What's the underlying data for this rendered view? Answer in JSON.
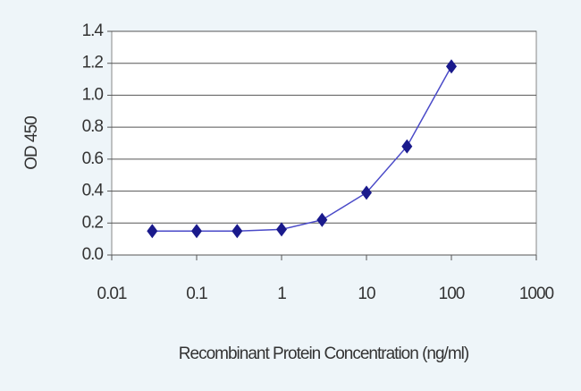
{
  "chart_data": {
    "type": "line",
    "x_label": "Recombinant Protein Concentration (ng/ml)",
    "y_label": "OD 450",
    "x": [
      0.03,
      0.1,
      0.3,
      1,
      3,
      10,
      30,
      100
    ],
    "series": [
      {
        "name": "OD 450",
        "color": "#1a1a8c",
        "values": [
          0.15,
          0.15,
          0.15,
          0.16,
          0.22,
          0.39,
          0.68,
          1.18
        ]
      }
    ],
    "log_x": true,
    "xlim": [
      0.01,
      1000
    ],
    "xticks": [
      0.01,
      0.1,
      1,
      10,
      100,
      1000
    ],
    "ylim": [
      0,
      1.4
    ],
    "yticks": [
      {
        "value": 0,
        "label": "0.0"
      },
      0.2,
      0.4,
      0.6,
      0.8,
      {
        "value": 1,
        "label": "1.0"
      },
      1.2,
      1.4
    ],
    "grid": true
  }
}
